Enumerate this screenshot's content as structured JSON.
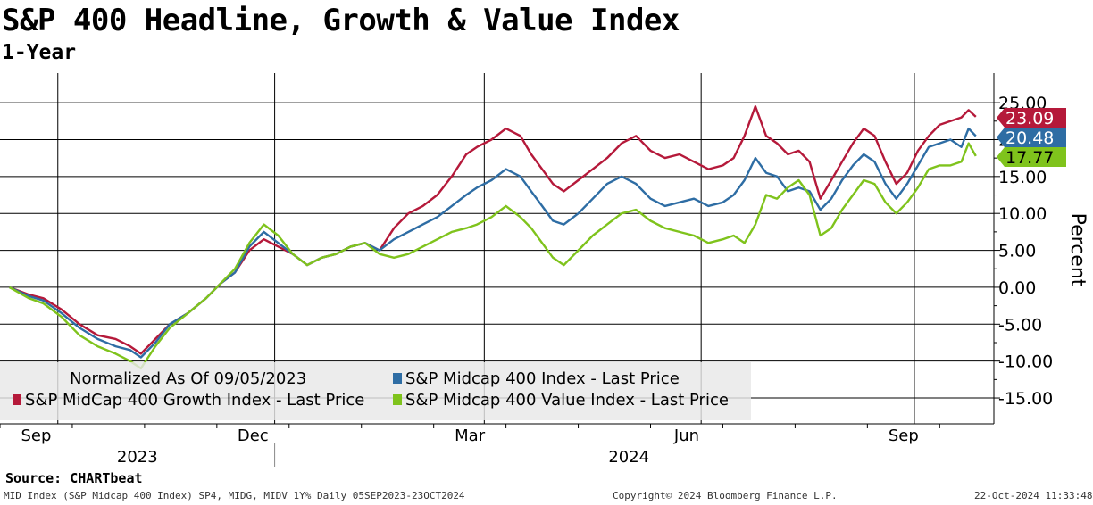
{
  "header": {
    "title": "S&P 400 Headline, Growth & Value Index",
    "subtitle": "1-Year"
  },
  "legend": {
    "note": "Normalized As Of 09/05/2023",
    "headline_label": "S&P Midcap 400 Index - Last Price",
    "growth_label": "S&P MidCap 400 Growth Index - Last Price",
    "value_label": "S&P Midcap 400 Value Index - Last Price"
  },
  "footer": {
    "source": "Source: CHARTbeat",
    "left": "MID Index (S&P Midcap 400 Index) SP4, MIDG, MIDV 1Y%  Daily 05SEP2023-23OCT2024",
    "center": "Copyright© 2024 Bloomberg Finance L.P.",
    "right": "22-Oct-2024 11:33:48"
  },
  "colors": {
    "headline": "#2e6da4",
    "growth": "#b5193a",
    "value": "#7fc31c",
    "grid": "#000000"
  },
  "chart_data": {
    "type": "line",
    "title": "S&P 400 Headline, Growth & Value Index",
    "subtitle": "1-Year",
    "ylabel": "Percent",
    "xlabel": "",
    "ylim": [
      -18.5,
      29
    ],
    "yticks": [
      25,
      20,
      15,
      10,
      5,
      0,
      -5,
      -10,
      -15
    ],
    "ytick_labels": [
      "25.00",
      "20.00",
      "15.00",
      "10.00",
      "5.00",
      "0.00",
      "-5.00",
      "-10.00",
      "-15.00"
    ],
    "x_unit": "months since 2023-09-01",
    "xlim": [
      0,
      13.75
    ],
    "month_ticks": [
      0,
      1,
      2,
      3,
      4,
      5,
      6,
      7,
      8,
      9,
      10,
      11,
      12,
      13
    ],
    "month_labels": [
      {
        "x": 0,
        "label": "Sep"
      },
      {
        "x": 3,
        "label": "Dec"
      },
      {
        "x": 6,
        "label": "Mar"
      },
      {
        "x": 9,
        "label": "Jun"
      },
      {
        "x": 12,
        "label": "Sep"
      }
    ],
    "quarter_gridlines": [
      0.8,
      3.8,
      6.7,
      9.7,
      12.65
    ],
    "year_labels": [
      {
        "x": 1.9,
        "label": "2023"
      },
      {
        "x": 8.7,
        "label": "2024"
      }
    ],
    "year_divider": 3.8,
    "series": [
      {
        "name": "S&P MidCap 400 Growth Index - Last Price",
        "key": "growth",
        "last_value": "23.09",
        "x": [
          0.13,
          0.4,
          0.6,
          0.85,
          1.1,
          1.35,
          1.6,
          1.8,
          1.95,
          2.15,
          2.35,
          2.6,
          2.85,
          3.05,
          3.25,
          3.45,
          3.65,
          3.85,
          4.05,
          4.25,
          4.45,
          4.65,
          4.85,
          5.05,
          5.25,
          5.45,
          5.65,
          5.85,
          6.05,
          6.25,
          6.45,
          6.6,
          6.8,
          7.0,
          7.2,
          7.35,
          7.5,
          7.65,
          7.8,
          8.0,
          8.2,
          8.4,
          8.6,
          8.8,
          9.0,
          9.2,
          9.4,
          9.6,
          9.8,
          10.0,
          10.15,
          10.3,
          10.45,
          10.6,
          10.75,
          10.9,
          11.05,
          11.2,
          11.35,
          11.5,
          11.65,
          11.8,
          11.95,
          12.1,
          12.25,
          12.4,
          12.55,
          12.7,
          12.85,
          13.0,
          13.15,
          13.3,
          13.4,
          13.5
        ],
        "y": [
          0.0,
          -1.0,
          -1.5,
          -3.0,
          -5.0,
          -6.5,
          -7.0,
          -8.0,
          -9.0,
          -7.0,
          -5.0,
          -3.5,
          -1.5,
          0.5,
          2.0,
          5.0,
          6.5,
          5.5,
          4.5,
          3.0,
          4.0,
          4.5,
          5.5,
          6.0,
          5.0,
          8.0,
          10.0,
          11.0,
          12.5,
          15.0,
          18.0,
          19.0,
          20.0,
          21.5,
          20.5,
          18.0,
          16.0,
          14.0,
          13.0,
          14.5,
          16.0,
          17.5,
          19.5,
          20.5,
          18.5,
          17.5,
          18.0,
          17.0,
          16.0,
          16.5,
          17.5,
          20.5,
          24.5,
          20.5,
          19.5,
          18.0,
          18.5,
          17.0,
          12.0,
          14.5,
          17.0,
          19.5,
          21.5,
          20.5,
          17.0,
          14.0,
          15.5,
          18.5,
          20.5,
          22.0,
          22.5,
          23.0,
          24.0,
          23.09
        ]
      },
      {
        "name": "S&P Midcap 400 Index - Last Price",
        "key": "headline",
        "last_value": "20.48",
        "x": [
          0.13,
          0.4,
          0.6,
          0.85,
          1.1,
          1.35,
          1.6,
          1.8,
          1.95,
          2.15,
          2.35,
          2.6,
          2.85,
          3.05,
          3.25,
          3.45,
          3.65,
          3.85,
          4.05,
          4.25,
          4.45,
          4.65,
          4.85,
          5.05,
          5.25,
          5.45,
          5.65,
          5.85,
          6.05,
          6.25,
          6.45,
          6.6,
          6.8,
          7.0,
          7.2,
          7.35,
          7.5,
          7.65,
          7.8,
          8.0,
          8.2,
          8.4,
          8.6,
          8.8,
          9.0,
          9.2,
          9.4,
          9.6,
          9.8,
          10.0,
          10.15,
          10.3,
          10.45,
          10.6,
          10.75,
          10.9,
          11.05,
          11.2,
          11.35,
          11.5,
          11.65,
          11.8,
          11.95,
          12.1,
          12.25,
          12.4,
          12.55,
          12.7,
          12.85,
          13.0,
          13.15,
          13.3,
          13.4,
          13.5
        ],
        "y": [
          0.0,
          -1.2,
          -1.8,
          -3.5,
          -5.5,
          -7.0,
          -8.0,
          -8.5,
          -9.5,
          -7.5,
          -5.0,
          -3.5,
          -1.5,
          0.5,
          2.0,
          5.5,
          7.5,
          6.0,
          4.5,
          3.0,
          4.0,
          4.5,
          5.5,
          6.0,
          5.0,
          6.5,
          7.5,
          8.5,
          9.5,
          11.0,
          12.5,
          13.5,
          14.5,
          16.0,
          15.0,
          13.0,
          11.0,
          9.0,
          8.5,
          10.0,
          12.0,
          14.0,
          15.0,
          14.0,
          12.0,
          11.0,
          11.5,
          12.0,
          11.0,
          11.5,
          12.5,
          14.5,
          17.5,
          15.5,
          15.0,
          13.0,
          13.5,
          13.0,
          10.5,
          12.0,
          14.5,
          16.5,
          18.0,
          17.0,
          14.0,
          12.0,
          14.0,
          16.5,
          19.0,
          19.5,
          20.0,
          19.0,
          21.5,
          20.48
        ]
      },
      {
        "name": "S&P Midcap 400 Value Index - Last Price",
        "key": "value",
        "last_value": "17.77",
        "x": [
          0.13,
          0.4,
          0.6,
          0.85,
          1.1,
          1.35,
          1.6,
          1.8,
          1.95,
          2.15,
          2.35,
          2.6,
          2.85,
          3.05,
          3.25,
          3.45,
          3.65,
          3.85,
          4.05,
          4.25,
          4.45,
          4.65,
          4.85,
          5.05,
          5.25,
          5.45,
          5.65,
          5.85,
          6.05,
          6.25,
          6.45,
          6.6,
          6.8,
          7.0,
          7.2,
          7.35,
          7.5,
          7.65,
          7.8,
          8.0,
          8.2,
          8.4,
          8.6,
          8.8,
          9.0,
          9.2,
          9.4,
          9.6,
          9.8,
          10.0,
          10.15,
          10.3,
          10.45,
          10.6,
          10.75,
          10.9,
          11.05,
          11.2,
          11.35,
          11.5,
          11.65,
          11.8,
          11.95,
          12.1,
          12.25,
          12.4,
          12.55,
          12.7,
          12.85,
          13.0,
          13.15,
          13.3,
          13.4,
          13.5
        ],
        "y": [
          0.0,
          -1.5,
          -2.2,
          -4.0,
          -6.5,
          -8.0,
          -9.0,
          -10.0,
          -11.0,
          -8.0,
          -5.5,
          -3.5,
          -1.5,
          0.5,
          2.5,
          6.0,
          8.5,
          7.0,
          4.5,
          3.0,
          4.0,
          4.5,
          5.5,
          6.0,
          4.5,
          4.0,
          4.5,
          5.5,
          6.5,
          7.5,
          8.0,
          8.5,
          9.5,
          11.0,
          9.5,
          8.0,
          6.0,
          4.0,
          3.0,
          5.0,
          7.0,
          8.5,
          10.0,
          10.5,
          9.0,
          8.0,
          7.5,
          7.0,
          6.0,
          6.5,
          7.0,
          6.0,
          8.5,
          12.5,
          12.0,
          13.5,
          14.5,
          12.5,
          7.0,
          8.0,
          10.5,
          12.5,
          14.5,
          14.0,
          11.5,
          10.0,
          11.5,
          13.5,
          16.0,
          16.5,
          16.5,
          17.0,
          19.5,
          17.77
        ]
      }
    ]
  }
}
